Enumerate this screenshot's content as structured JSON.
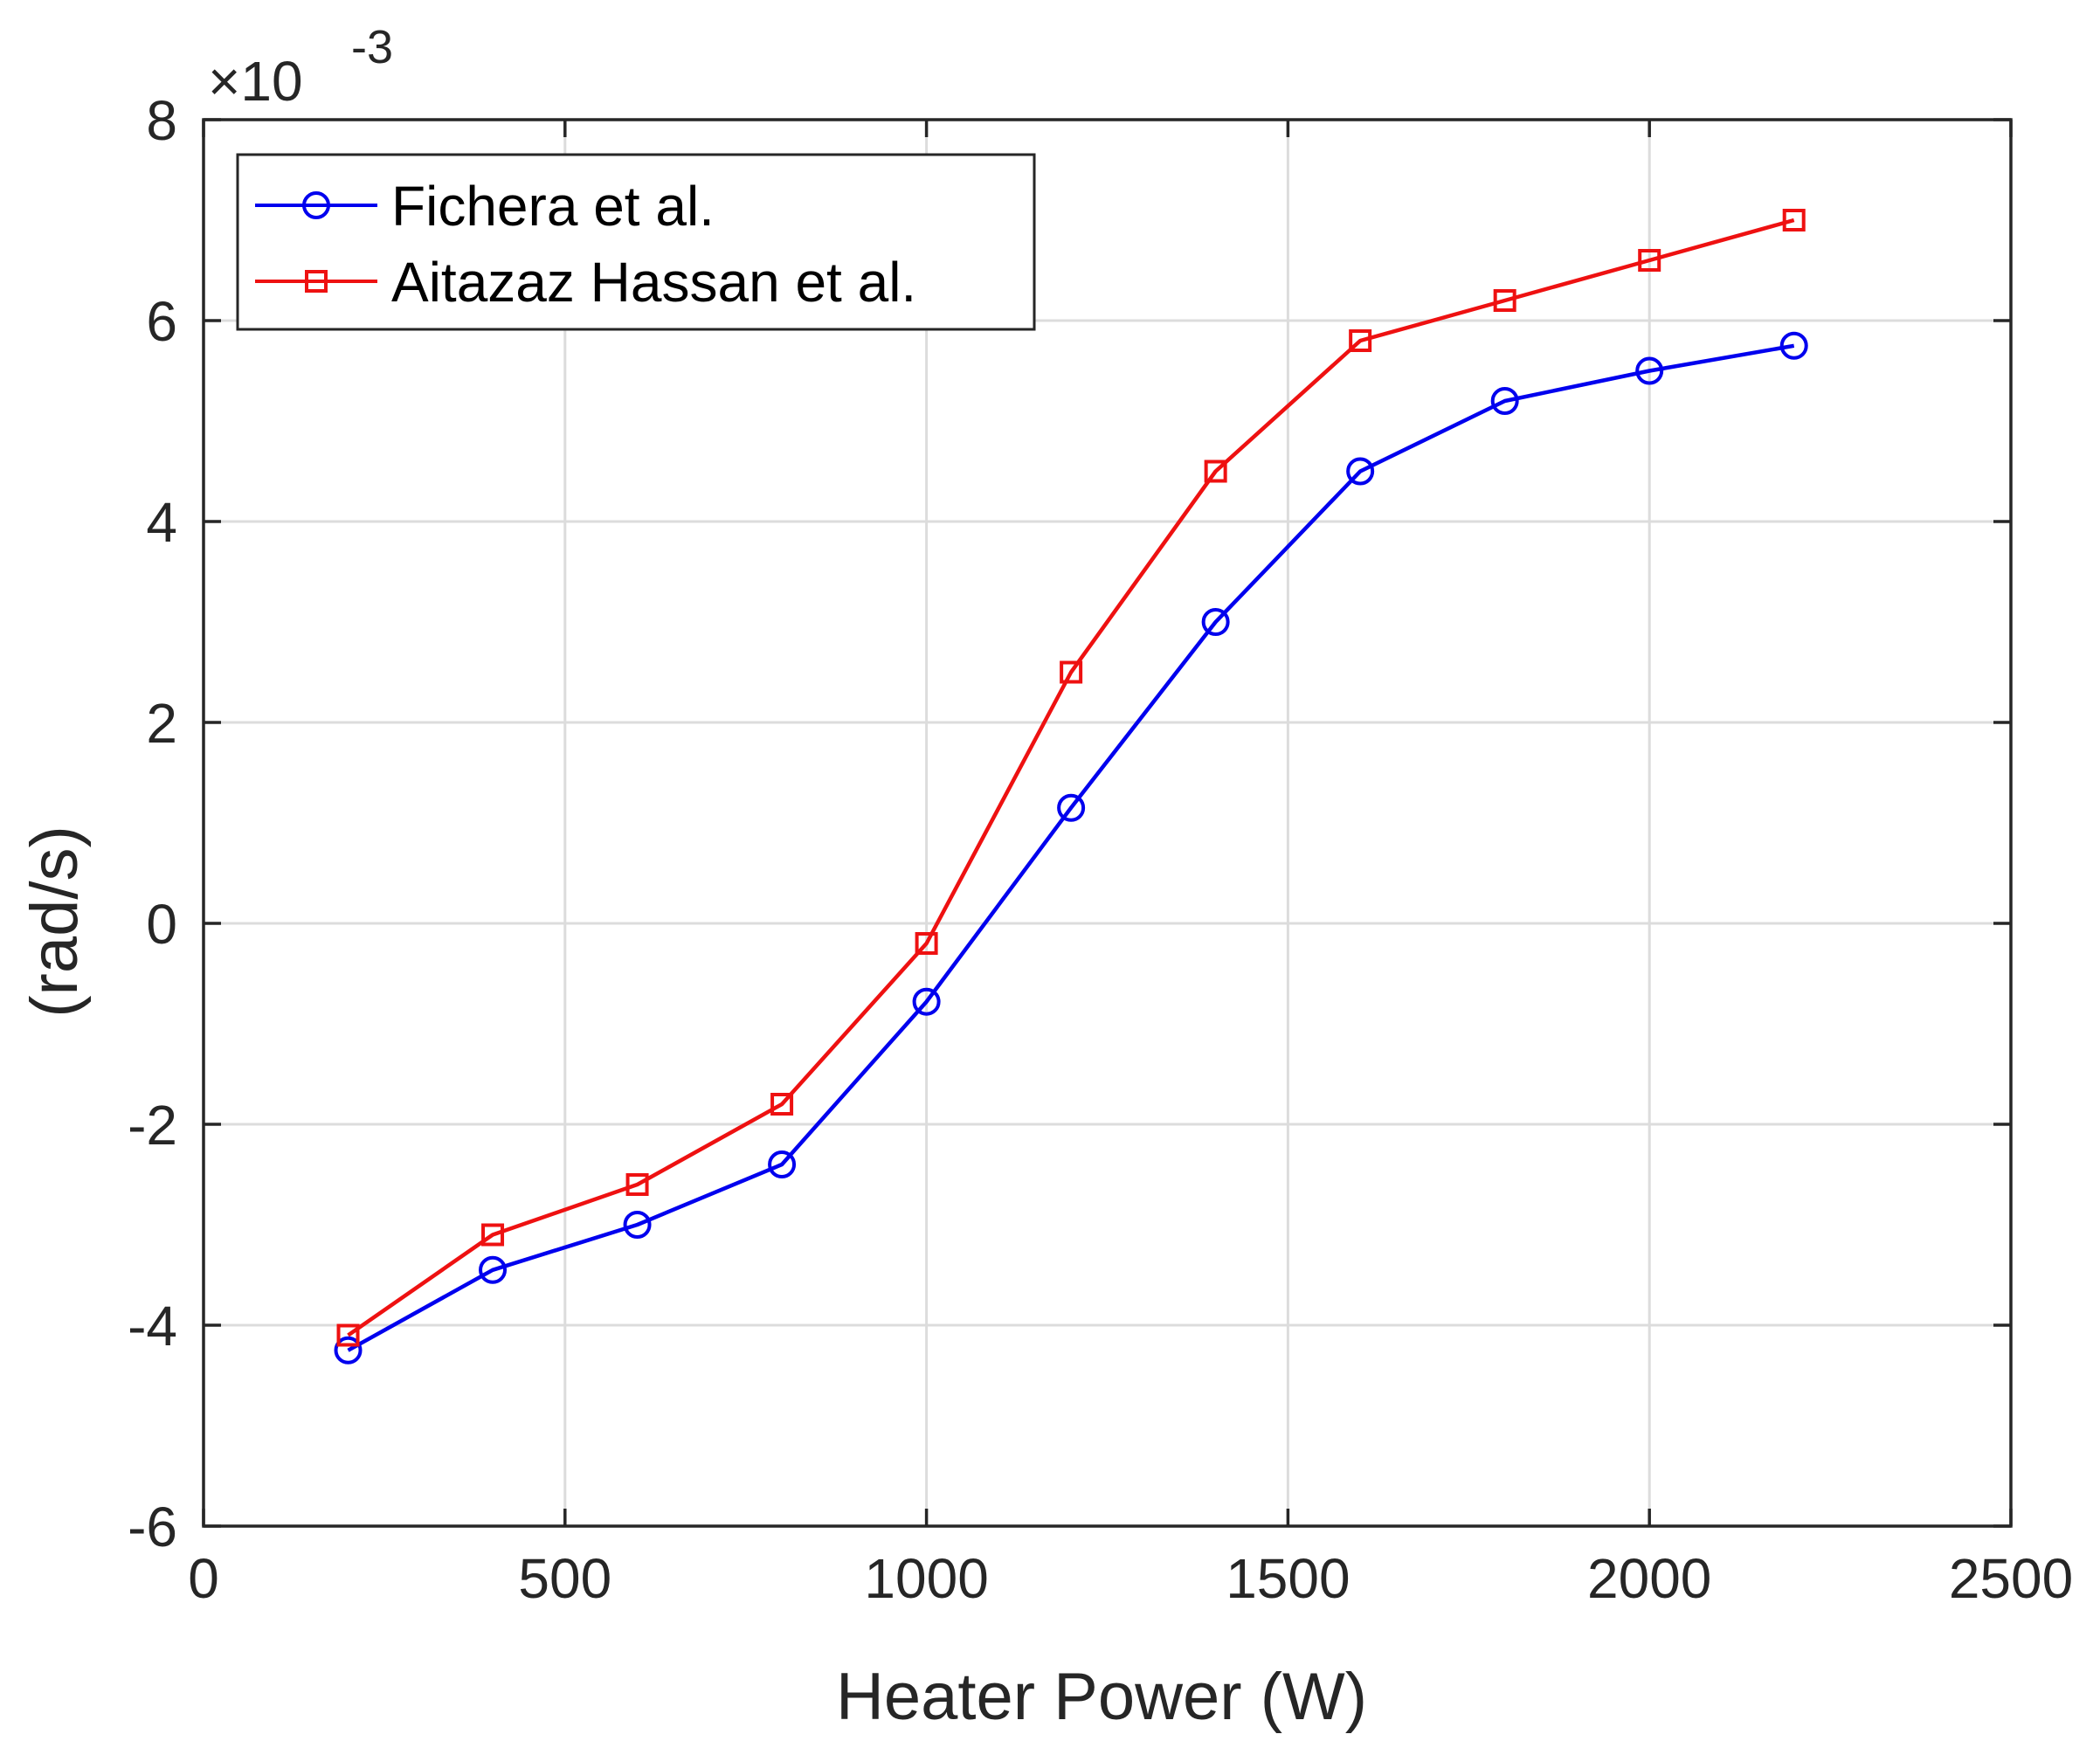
{
  "chart_data": {
    "type": "line",
    "title": "",
    "xlabel": "Heater Power (W)",
    "ylabel": "(rad/s)",
    "y_multiplier": {
      "base": "×10",
      "exponent": "-3"
    },
    "xlim": [
      0,
      2500
    ],
    "ylim": [
      -6,
      8
    ],
    "xticks": [
      0,
      500,
      1000,
      1500,
      2000,
      2500
    ],
    "xtick_labels": [
      "0",
      "500",
      "1000",
      "1500",
      "2000",
      "2500"
    ],
    "yticks": [
      -6,
      -4,
      -2,
      0,
      2,
      4,
      6,
      8
    ],
    "ytick_labels": [
      "-6",
      "-4",
      "-2",
      "0",
      "2",
      "4",
      "6",
      "8"
    ],
    "grid": true,
    "legend_position": "top-left",
    "x": [
      200,
      400,
      600,
      800,
      1000,
      1200,
      1400,
      1600,
      1800,
      2000,
      2200
    ],
    "series": [
      {
        "name": "Fichera et al.",
        "color": "#0000ee",
        "marker": "circle",
        "values": [
          -4.25,
          -3.45,
          -3.0,
          -2.4,
          -0.78,
          1.15,
          3.0,
          4.5,
          5.2,
          5.5,
          5.75
        ]
      },
      {
        "name": "Aitazaz Hassan et al.",
        "color": "#ee1111",
        "marker": "square",
        "values": [
          -4.1,
          -3.1,
          -2.6,
          -1.8,
          -0.2,
          2.5,
          4.5,
          5.8,
          6.2,
          6.6,
          7.0
        ]
      }
    ]
  }
}
